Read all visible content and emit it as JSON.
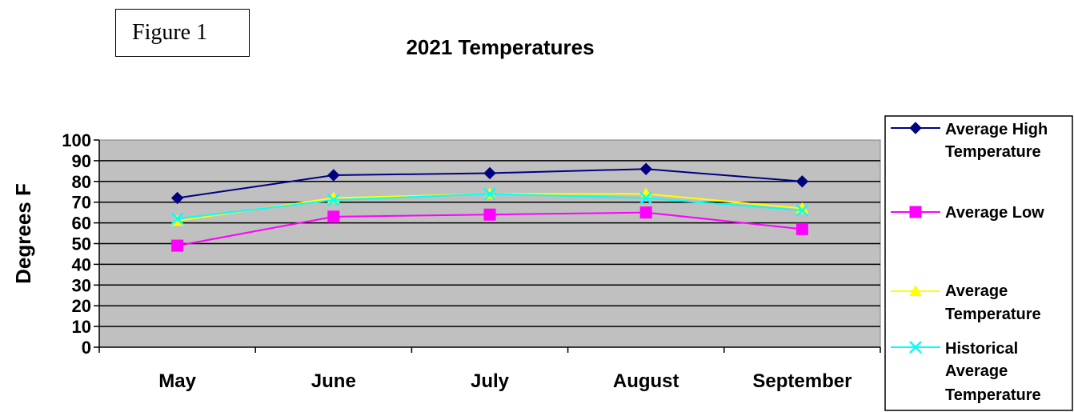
{
  "figure_label": "Figure 1",
  "chart_data": {
    "type": "line",
    "title": "2021 Temperatures",
    "xlabel": "",
    "ylabel": "Degrees F",
    "categories": [
      "May",
      "June",
      "July",
      "August",
      "September"
    ],
    "ylim": [
      0,
      100
    ],
    "yticks": [
      0,
      10,
      20,
      30,
      40,
      50,
      60,
      70,
      80,
      90,
      100
    ],
    "grid": true,
    "legend_position": "right",
    "series": [
      {
        "name": "Average High Temperature",
        "color": "#000080",
        "marker": "diamond",
        "values": [
          72,
          83,
          84,
          86,
          80
        ]
      },
      {
        "name": "Average Low",
        "color": "#ff00ff",
        "marker": "square",
        "values": [
          49,
          63,
          64,
          65,
          57
        ]
      },
      {
        "name": "Average Temperature",
        "color": "#ffff00",
        "marker": "triangle",
        "values": [
          61,
          72,
          74,
          74,
          67
        ]
      },
      {
        "name": "Historical Average Temperature",
        "color": "#00ffff",
        "marker": "x",
        "values": [
          62,
          71,
          74,
          72,
          66
        ]
      }
    ]
  }
}
